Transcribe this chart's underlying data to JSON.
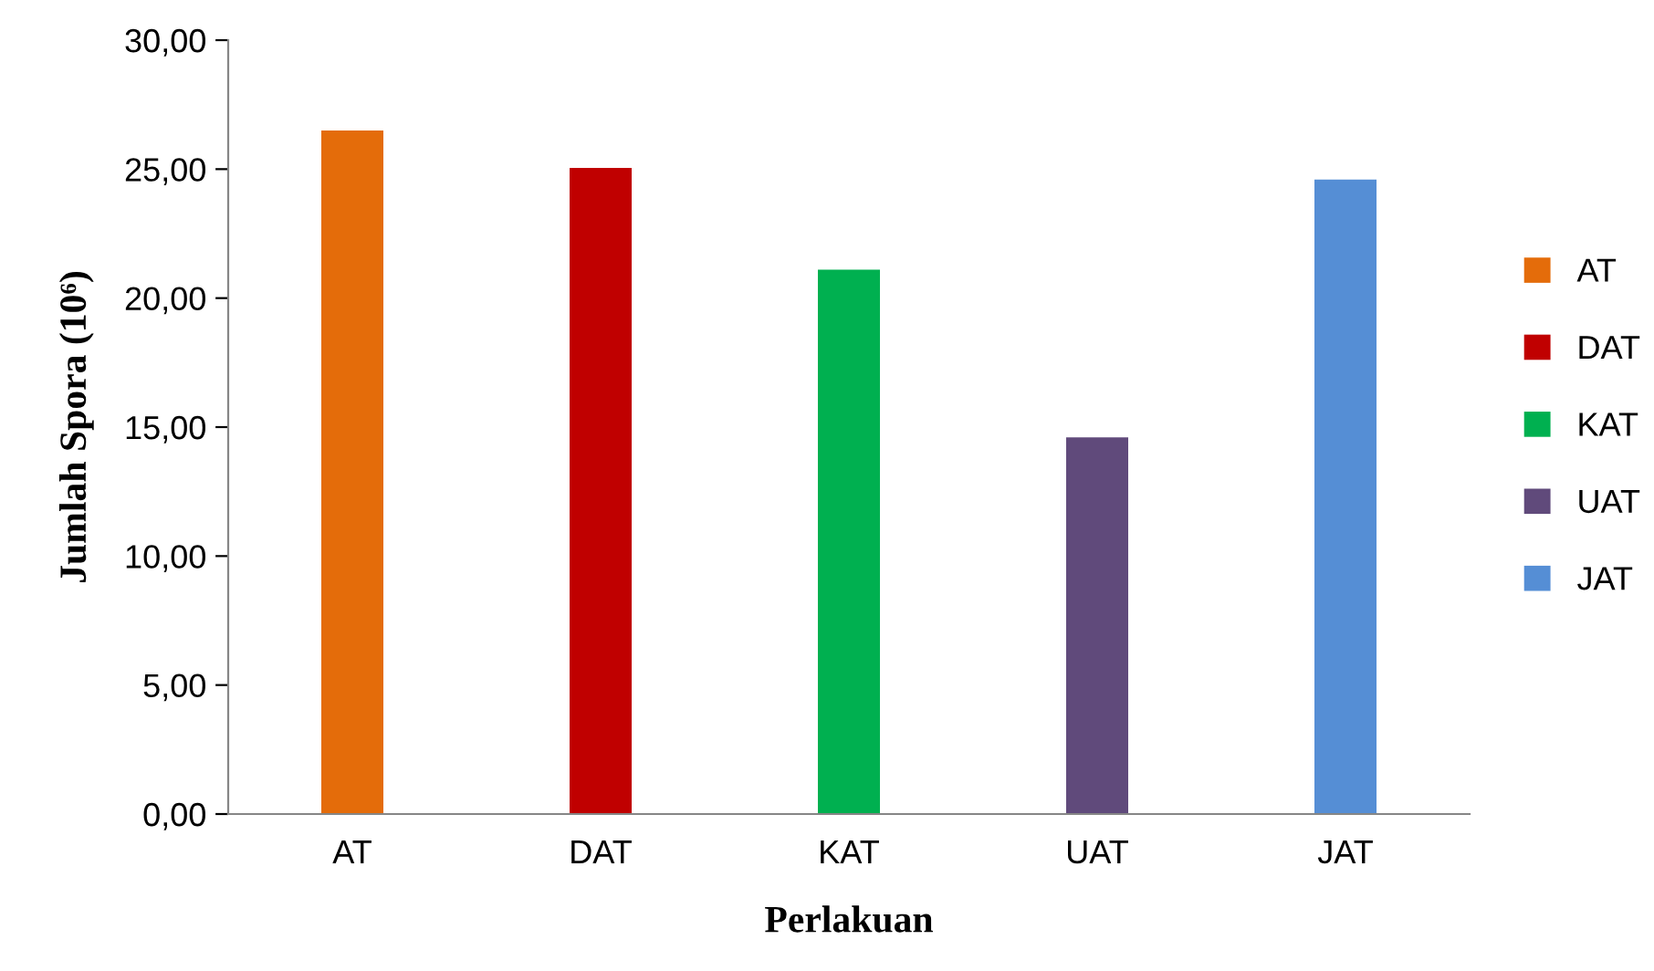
{
  "chart_data": {
    "type": "bar",
    "xlabel": "Perlakuan",
    "ylabel": "Jumlah Spora (10⁶)",
    "categories": [
      "AT",
      "DAT",
      "KAT",
      "UAT",
      "JAT"
    ],
    "series": [
      {
        "name": "AT",
        "color": "#e46c0a",
        "values": [
          26.5,
          null,
          null,
          null,
          null
        ]
      },
      {
        "name": "DAT",
        "color": "#c00000",
        "values": [
          null,
          25.05,
          null,
          null,
          null
        ]
      },
      {
        "name": "KAT",
        "color": "#00b050",
        "values": [
          null,
          null,
          21.1,
          null,
          null
        ]
      },
      {
        "name": "UAT",
        "color": "#604a7b",
        "values": [
          null,
          null,
          null,
          14.6,
          null
        ]
      },
      {
        "name": "JAT",
        "color": "#558ed5",
        "values": [
          null,
          null,
          null,
          null,
          24.6
        ]
      }
    ],
    "ylim": [
      0,
      30
    ],
    "yticks": [
      {
        "value": 0,
        "label": "0,00"
      },
      {
        "value": 5,
        "label": "5,00"
      },
      {
        "value": 10,
        "label": "10,00"
      },
      {
        "value": 15,
        "label": "15,00"
      },
      {
        "value": 20,
        "label": "20,00"
      },
      {
        "value": 25,
        "label": "25,00"
      },
      {
        "value": 30,
        "label": "30,00"
      }
    ],
    "grid": false,
    "legend": "right"
  }
}
